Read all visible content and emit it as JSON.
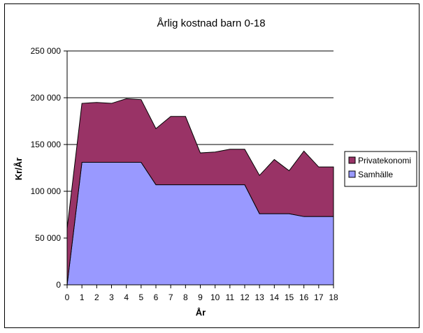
{
  "chart_data": {
    "type": "area",
    "stacked": true,
    "title": "Årlig kostnad barn 0-18",
    "xlabel": "År",
    "ylabel": "Kr/År",
    "x": [
      0,
      1,
      2,
      3,
      4,
      5,
      6,
      7,
      8,
      9,
      10,
      11,
      12,
      13,
      14,
      15,
      16,
      17,
      18
    ],
    "ylim": [
      0,
      250000
    ],
    "yticks": [
      0,
      50000,
      100000,
      150000,
      200000,
      250000
    ],
    "ytick_labels": [
      "0",
      "50 000",
      "100 000",
      "150 000",
      "200 000",
      "250 000"
    ],
    "grid": true,
    "legend_position": "right",
    "series": [
      {
        "name": "Samhälle",
        "color": "#9999ff",
        "values": [
          0,
          131000,
          131000,
          131000,
          131000,
          131000,
          107000,
          107000,
          107000,
          107000,
          107000,
          107000,
          107000,
          76000,
          76000,
          76000,
          73000,
          73000,
          73000
        ]
      },
      {
        "name": "Privatekonomi",
        "color": "#993366",
        "values": [
          60000,
          63000,
          64000,
          63000,
          68000,
          67000,
          60000,
          73000,
          73000,
          34000,
          35000,
          38000,
          38000,
          41000,
          58000,
          46000,
          70000,
          53000,
          53000
        ]
      }
    ]
  }
}
